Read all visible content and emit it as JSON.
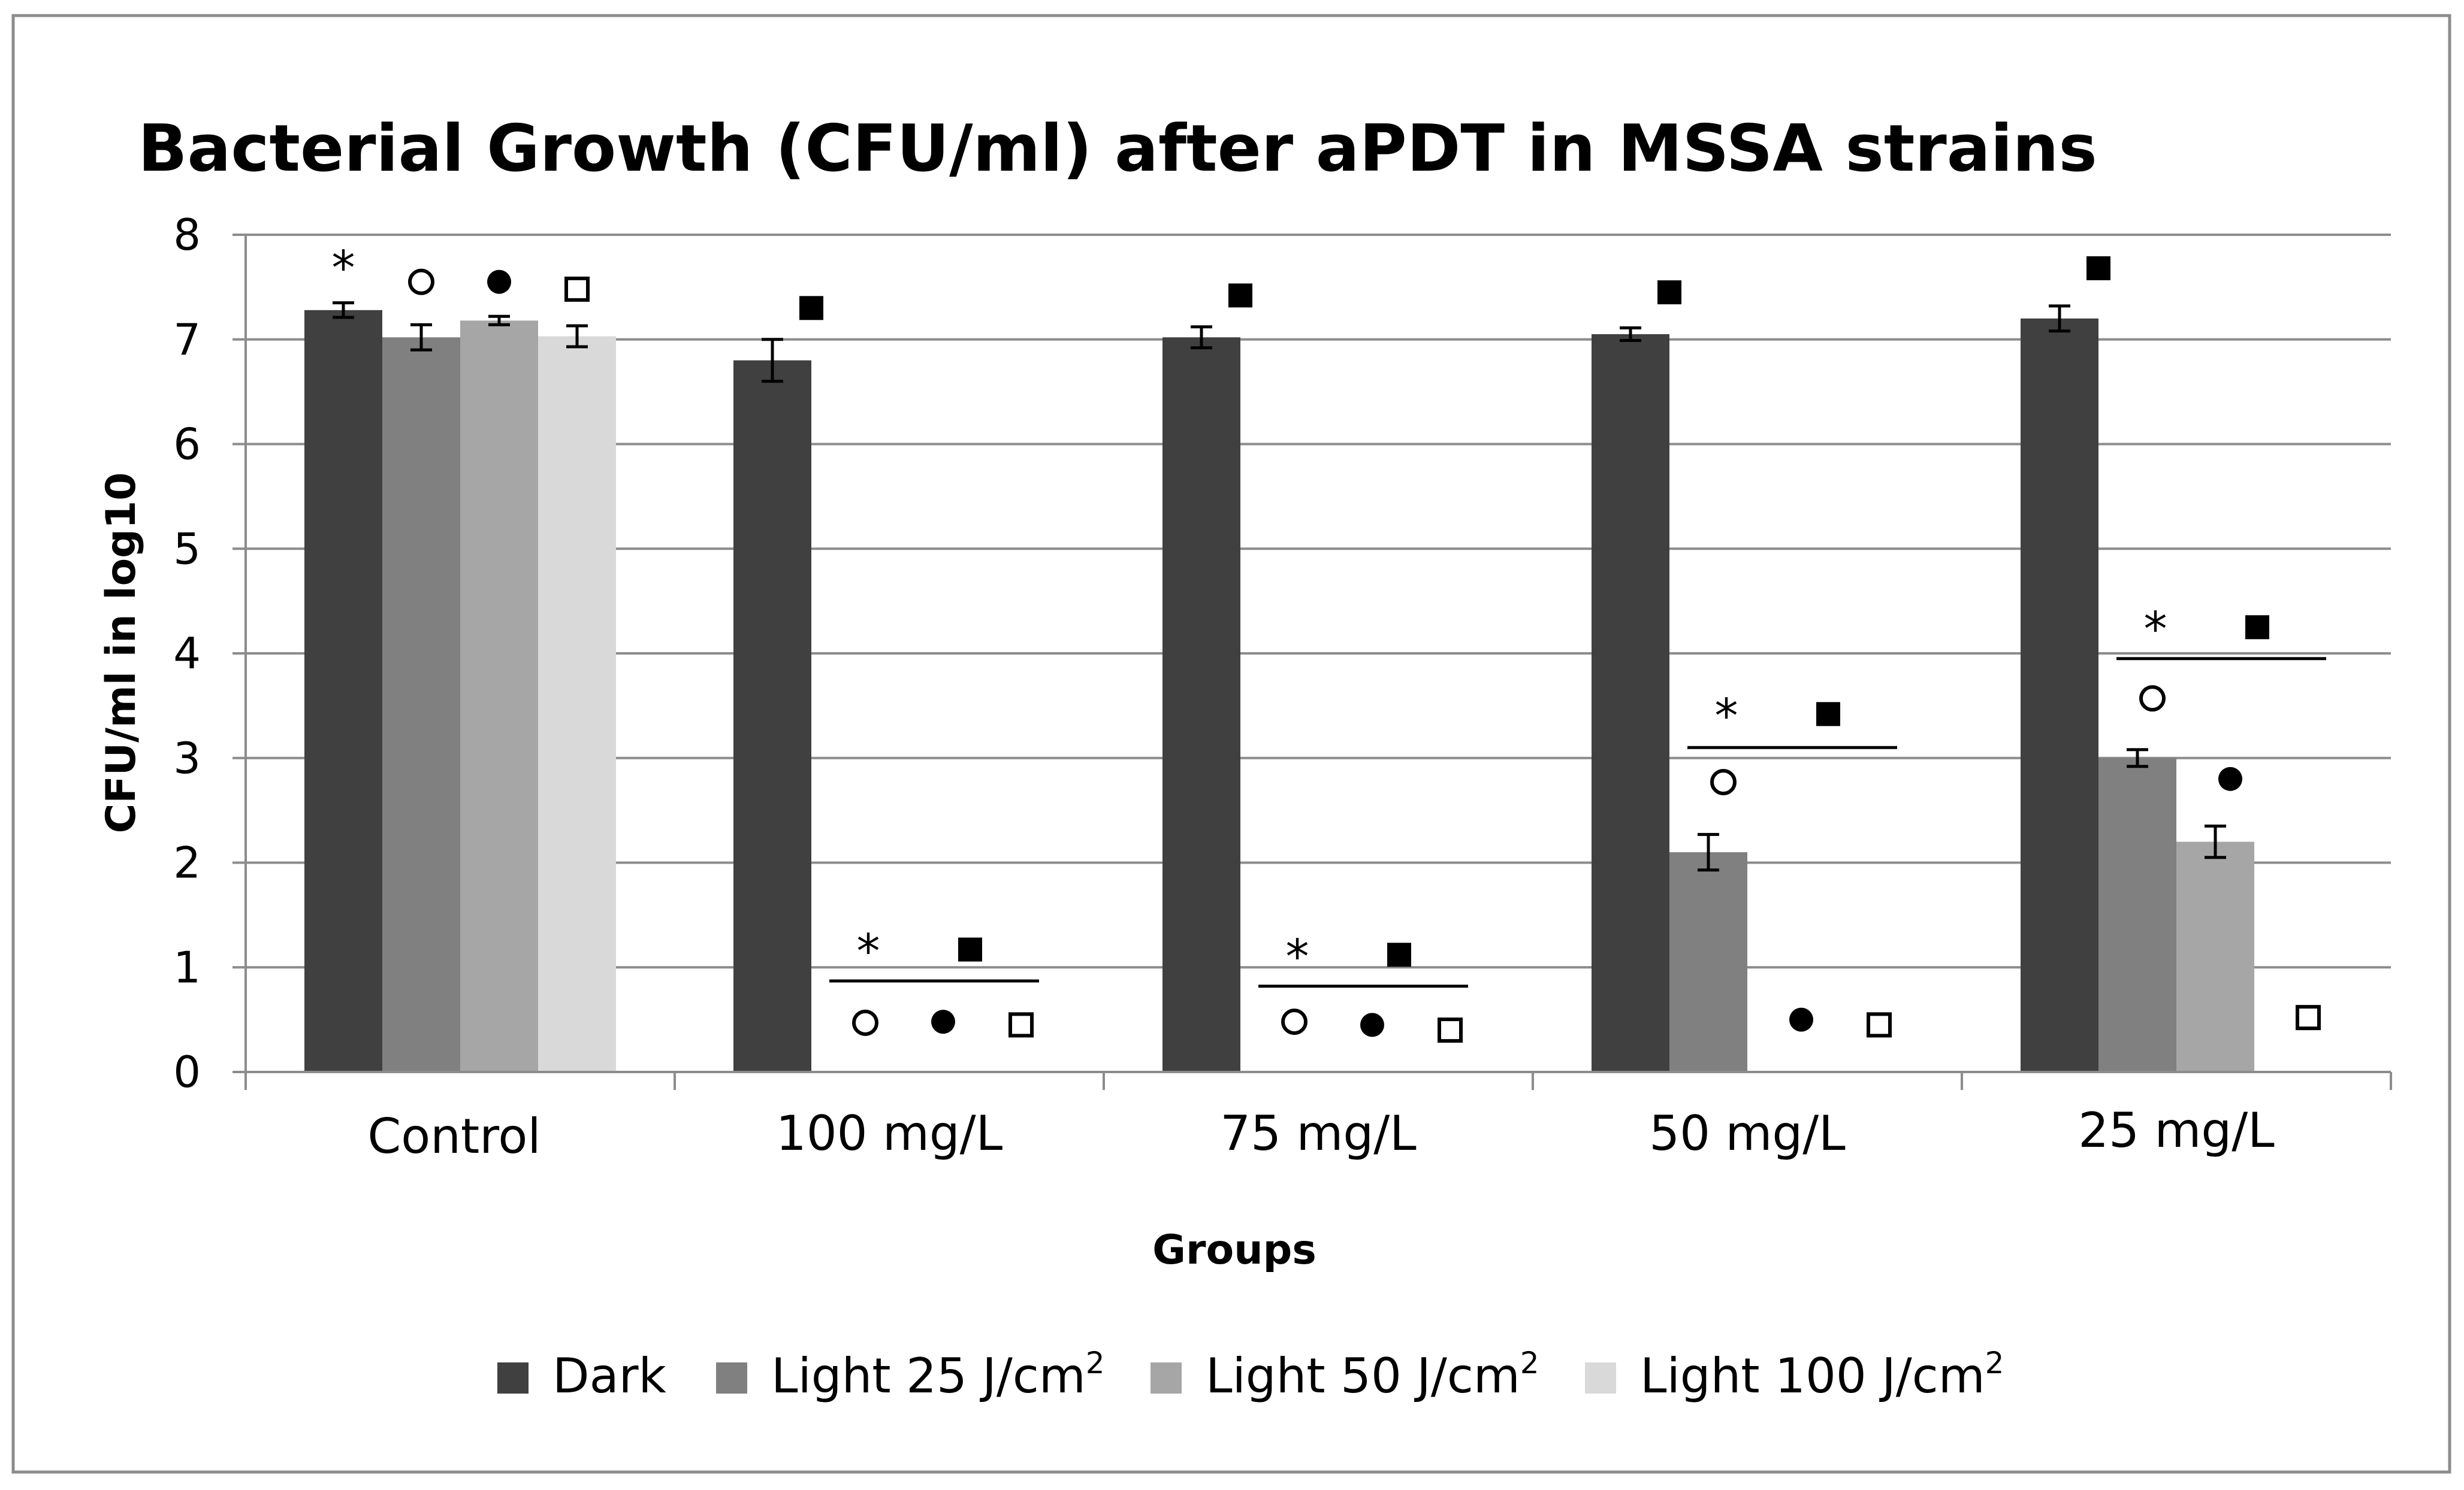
{
  "chart_data": {
    "type": "bar",
    "title": "Bacterial Growth (CFU/ml) after aPDT in MSSA strains",
    "xlabel": "Groups",
    "ylabel": "CFU/ml in log10",
    "ylim": [
      0,
      8
    ],
    "yticks": [
      "0",
      "1",
      "2",
      "3",
      "4",
      "5",
      "6",
      "7",
      "8"
    ],
    "categories": [
      "Control",
      "100 mg/L",
      "75 mg/L",
      "50 mg/L",
      "25 mg/L"
    ],
    "series": [
      {
        "name": "Dark",
        "unit": "",
        "color": "#404040",
        "values": [
          7.28,
          6.8,
          7.02,
          7.05,
          7.2
        ],
        "errors": [
          0.07,
          0.2,
          0.1,
          0.06,
          0.12
        ]
      },
      {
        "name": "Light 25 J/cm",
        "unit": "2",
        "color": "#808080",
        "values": [
          7.02,
          0,
          0,
          2.1,
          3.0
        ],
        "errors": [
          0.12,
          0,
          0,
          0.17,
          0.08
        ]
      },
      {
        "name": "Light 50 J/cm",
        "unit": "2",
        "color": "#a6a6a6",
        "values": [
          7.18,
          0,
          0,
          0,
          2.2
        ],
        "errors": [
          0.04,
          0,
          0,
          0,
          0.15
        ]
      },
      {
        "name": "Light 100 J/cm",
        "unit": "2",
        "color": "#d9d9d9",
        "values": [
          7.03,
          0,
          0,
          0,
          0
        ],
        "errors": [
          0.1,
          0,
          0,
          0,
          0
        ]
      }
    ],
    "significance_symbols": {
      "dark": "filled-square",
      "light25": "open-circle",
      "light50": "filled-circle",
      "light100": "open-square",
      "group": "*"
    },
    "annotations": [
      {
        "category": "Control",
        "series": 0,
        "symbol": "*",
        "y": 7.7
      },
      {
        "category": "Control",
        "series": 1,
        "symbol": "open-circle",
        "y": 7.55
      },
      {
        "category": "Control",
        "series": 2,
        "symbol": "filled-circle",
        "y": 7.55
      },
      {
        "category": "Control",
        "series": 3,
        "symbol": "open-square",
        "y": 7.48
      },
      {
        "category": "100 mg/L",
        "series": 0,
        "symbol": "filled-square",
        "y": 7.3
      },
      {
        "category": "100 mg/L",
        "series": 1,
        "symbol": "open-circle",
        "y": 0.47
      },
      {
        "category": "100 mg/L",
        "series": 2,
        "symbol": "filled-circle",
        "y": 0.48
      },
      {
        "category": "100 mg/L",
        "series": 3,
        "symbol": "open-square",
        "y": 0.45
      },
      {
        "category": "100 mg/L",
        "series": 1.5,
        "symbol": "*",
        "y": 1.17
      },
      {
        "category": "100 mg/L",
        "series": 2.3,
        "symbol": "filled-square",
        "y": 1.17
      },
      {
        "category": "75 mg/L",
        "series": 0,
        "symbol": "filled-square",
        "y": 7.42
      },
      {
        "category": "75 mg/L",
        "series": 1,
        "symbol": "open-circle",
        "y": 0.48
      },
      {
        "category": "75 mg/L",
        "series": 2,
        "symbol": "filled-circle",
        "y": 0.45
      },
      {
        "category": "75 mg/L",
        "series": 3,
        "symbol": "open-square",
        "y": 0.4
      },
      {
        "category": "75 mg/L",
        "series": 1.5,
        "symbol": "*",
        "y": 1.12
      },
      {
        "category": "75 mg/L",
        "series": 2.3,
        "symbol": "filled-square",
        "y": 1.12
      },
      {
        "category": "50 mg/L",
        "series": 0,
        "symbol": "filled-square",
        "y": 7.45
      },
      {
        "category": "50 mg/L",
        "series": 1,
        "symbol": "open-circle",
        "y": 2.77
      },
      {
        "category": "50 mg/L",
        "series": 2,
        "symbol": "filled-circle",
        "y": 0.5
      },
      {
        "category": "50 mg/L",
        "series": 3,
        "symbol": "open-square",
        "y": 0.45
      },
      {
        "category": "50 mg/L",
        "series": 1.5,
        "symbol": "*",
        "y": 3.42
      },
      {
        "category": "50 mg/L",
        "series": 2.3,
        "symbol": "filled-square",
        "y": 3.42
      },
      {
        "category": "25 mg/L",
        "series": 0,
        "symbol": "filled-square",
        "y": 7.68
      },
      {
        "category": "25 mg/L",
        "series": 1,
        "symbol": "open-circle",
        "y": 3.57
      },
      {
        "category": "25 mg/L",
        "series": 2,
        "symbol": "filled-circle",
        "y": 2.8
      },
      {
        "category": "25 mg/L",
        "series": 3,
        "symbol": "open-square",
        "y": 0.52
      },
      {
        "category": "25 mg/L",
        "series": 1.5,
        "symbol": "*",
        "y": 4.25
      },
      {
        "category": "25 mg/L",
        "series": 2.3,
        "symbol": "filled-square",
        "y": 4.25
      }
    ],
    "significance_lines": [
      {
        "category": "100 mg/L",
        "y": 0.87
      },
      {
        "category": "75 mg/L",
        "y": 0.82
      },
      {
        "category": "50 mg/L",
        "y": 3.1
      },
      {
        "category": "25 mg/L",
        "y": 3.95
      }
    ],
    "grid": true,
    "legend_position": "bottom"
  }
}
